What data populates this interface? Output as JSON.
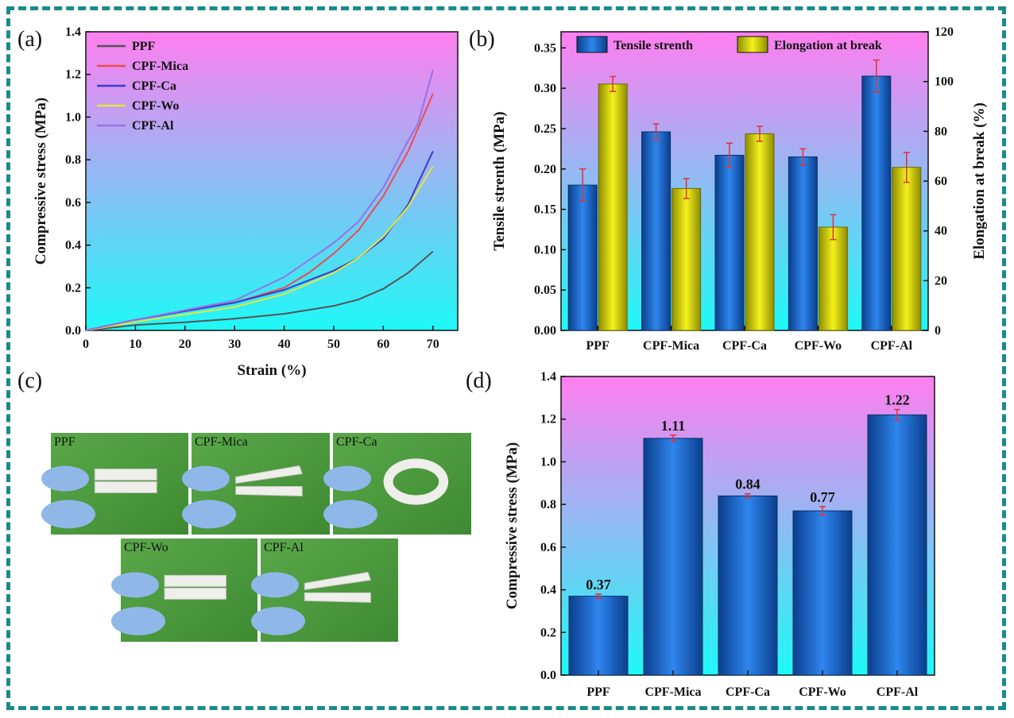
{
  "colors": {
    "frame": "#1b8a8a",
    "bg_top": "#ff7ef0",
    "bg_bottom": "#1ef9f6",
    "bar_blue": "#1a6fd6",
    "bar_yellow": "#e8e60c",
    "error": "#e0303a",
    "photo_green": "#4a9a3c"
  },
  "panel_a": {
    "letter": "(a)",
    "chart_data": {
      "type": "line",
      "xlabel": "Strain (%)",
      "ylabel": "Compressive stress (MPa)",
      "xlim": [
        0,
        75
      ],
      "ylim": [
        0,
        1.4
      ],
      "xticks": [
        "0",
        "10",
        "20",
        "30",
        "40",
        "50",
        "60",
        "70"
      ],
      "yticks": [
        "0.0",
        "0.2",
        "0.4",
        "0.6",
        "0.8",
        "1.0",
        "1.2",
        "1.4"
      ],
      "series": [
        {
          "name": "PPF",
          "color": "#555555",
          "x": [
            0,
            10,
            20,
            30,
            40,
            50,
            55,
            60,
            65,
            70
          ],
          "y": [
            0,
            0.025,
            0.038,
            0.055,
            0.078,
            0.115,
            0.145,
            0.195,
            0.27,
            0.37
          ]
        },
        {
          "name": "CPF-Mica",
          "color": "#ef4b4b",
          "x": [
            0,
            10,
            20,
            30,
            40,
            45,
            50,
            55,
            60,
            65,
            70
          ],
          "y": [
            0,
            0.05,
            0.09,
            0.13,
            0.2,
            0.27,
            0.36,
            0.47,
            0.63,
            0.84,
            1.11
          ]
        },
        {
          "name": "CPF-Ca",
          "color": "#3b3bcc",
          "x": [
            0,
            10,
            20,
            30,
            40,
            50,
            55,
            60,
            65,
            70
          ],
          "y": [
            0,
            0.05,
            0.09,
            0.13,
            0.19,
            0.28,
            0.34,
            0.43,
            0.59,
            0.84
          ]
        },
        {
          "name": "CPF-Wo",
          "color": "#e6e63a",
          "x": [
            0,
            10,
            20,
            30,
            40,
            50,
            55,
            60,
            65,
            70
          ],
          "y": [
            0,
            0.04,
            0.075,
            0.11,
            0.17,
            0.27,
            0.34,
            0.44,
            0.58,
            0.77
          ]
        },
        {
          "name": "CPF-Al",
          "color": "#9b6fe6",
          "x": [
            0,
            10,
            20,
            30,
            40,
            45,
            50,
            55,
            60,
            65,
            67,
            70
          ],
          "y": [
            0,
            0.05,
            0.095,
            0.14,
            0.25,
            0.33,
            0.41,
            0.51,
            0.67,
            0.89,
            0.97,
            1.22
          ]
        }
      ]
    }
  },
  "panel_b": {
    "letter": "(b)",
    "chart_data": {
      "type": "bar",
      "categories": [
        "PPF",
        "CPF-Mica",
        "CPF-Ca",
        "CPF-Wo",
        "CPF-Al"
      ],
      "ylabel": "Tensile strenth (MPa)",
      "y2label": "Elongation at break (%)",
      "ylim": [
        0,
        0.37
      ],
      "y2lim": [
        0,
        120
      ],
      "yticks": [
        "0.00",
        "0.05",
        "0.10",
        "0.15",
        "0.20",
        "0.25",
        "0.30",
        "0.35"
      ],
      "y2ticks": [
        "0",
        "20",
        "40",
        "60",
        "80",
        "100",
        "120"
      ],
      "series": [
        {
          "name": "Tensile strenth",
          "axis": "left",
          "values": [
            0.18,
            0.246,
            0.217,
            0.215,
            0.315
          ],
          "errors": [
            0.02,
            0.01,
            0.015,
            0.01,
            0.02
          ]
        },
        {
          "name": "Elongation at break",
          "axis": "right",
          "values": [
            99,
            57,
            79,
            41.5,
            65.5
          ],
          "errors": [
            3,
            4,
            3,
            5,
            6
          ]
        }
      ]
    }
  },
  "panel_c": {
    "letter": "(c)",
    "photos": [
      {
        "label": "PPF"
      },
      {
        "label": "CPF-Mica"
      },
      {
        "label": "CPF-Ca"
      },
      {
        "label": "CPF-Wo"
      },
      {
        "label": "CPF-Al"
      }
    ]
  },
  "panel_d": {
    "letter": "(d)",
    "chart_data": {
      "type": "bar",
      "categories": [
        "PPF",
        "CPF-Mica",
        "CPF-Ca",
        "CPF-Wo",
        "CPF-Al"
      ],
      "ylabel": "Compressive stress (MPa)",
      "ylim": [
        0,
        1.4
      ],
      "yticks": [
        "0.0",
        "0.2",
        "0.4",
        "0.6",
        "0.8",
        "1.0",
        "1.2",
        "1.4"
      ],
      "values": [
        0.37,
        1.11,
        0.84,
        0.77,
        1.22
      ],
      "errors": [
        0.01,
        0.015,
        0.01,
        0.02,
        0.025
      ],
      "data_labels": [
        "0.37",
        "1.11",
        "0.84",
        "0.77",
        "1.22"
      ]
    }
  }
}
